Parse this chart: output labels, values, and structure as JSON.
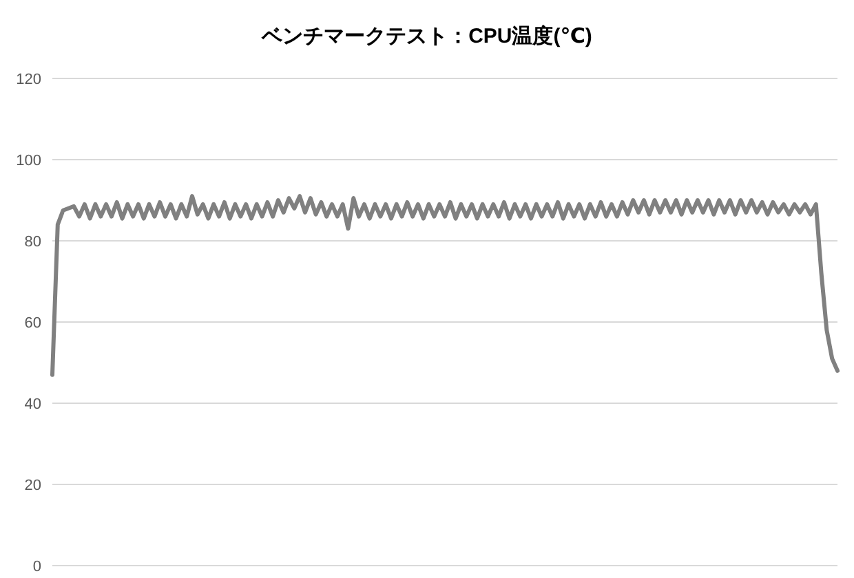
{
  "chart_data": {
    "type": "line",
    "title": "ベンチマークテスト：CPU温度(℃)",
    "categories": [
      null,
      null,
      null,
      null,
      null,
      null,
      null,
      null,
      null,
      null,
      null,
      null,
      null,
      null,
      null,
      null,
      null,
      null,
      null,
      null,
      null,
      null,
      null,
      null,
      null,
      null,
      null,
      null,
      null,
      null,
      null,
      null,
      null,
      null,
      null,
      null,
      null,
      null,
      null,
      null,
      null,
      null,
      null,
      null,
      null,
      null,
      null,
      null,
      null,
      null,
      null,
      null,
      null,
      null,
      null,
      null,
      null,
      null,
      null,
      null,
      null,
      null,
      null,
      null,
      null,
      null,
      null,
      null,
      null,
      null,
      null,
      null,
      null,
      null,
      null,
      null,
      null,
      null,
      null,
      null,
      null,
      null,
      null,
      null,
      null,
      null,
      null,
      null,
      null,
      null,
      null,
      null,
      null,
      null,
      null,
      null,
      null,
      null,
      null,
      null,
      null,
      null,
      null,
      null,
      null,
      null,
      null,
      null,
      null,
      null,
      null,
      null,
      null,
      null,
      null,
      null,
      null,
      null,
      null,
      null,
      null,
      null,
      null,
      null,
      null,
      null,
      null,
      null,
      null,
      null,
      null,
      null,
      null,
      null,
      null,
      null,
      null,
      null,
      null,
      null,
      null,
      null,
      null,
      null,
      null,
      null,
      null
    ],
    "series": [
      {
        "color": "#808080",
        "values": [
          47,
          84,
          87.5,
          88,
          88.5,
          86,
          89,
          85.5,
          89,
          86,
          89,
          86,
          89.5,
          85.5,
          89,
          86,
          89,
          85.5,
          89,
          86,
          89.5,
          86,
          89,
          85.5,
          89,
          86,
          91,
          86.5,
          89,
          85.5,
          89,
          86,
          89.5,
          85.5,
          89,
          86,
          89,
          85.5,
          89,
          86,
          89.5,
          86,
          90,
          87,
          90.5,
          88,
          91,
          87,
          90.5,
          86.5,
          89.5,
          86,
          89,
          86,
          89,
          83,
          90.5,
          86,
          89,
          85.5,
          89,
          86,
          89,
          85.5,
          89,
          86,
          89.5,
          86,
          89,
          85.5,
          89,
          86,
          89,
          86,
          89.5,
          85.5,
          89,
          86,
          89,
          85.5,
          89,
          86,
          89,
          86,
          89.5,
          85.5,
          89,
          86,
          89,
          85.5,
          89,
          86,
          89,
          86,
          89.5,
          85.5,
          89,
          86,
          89,
          85.5,
          89,
          86,
          89.5,
          86,
          89,
          86,
          89.5,
          86.5,
          90,
          87,
          90,
          86.5,
          90,
          87,
          90,
          87,
          90,
          86.5,
          90,
          87,
          90,
          87,
          90,
          86.5,
          90,
          87,
          90,
          86.5,
          90,
          87,
          90,
          87,
          89.5,
          86.5,
          89.5,
          87,
          89,
          86.5,
          89,
          87,
          89,
          86.5,
          89,
          72,
          58,
          51,
          48
        ]
      }
    ],
    "ylim": [
      0,
      120
    ],
    "yticks": [
      0,
      20,
      40,
      60,
      80,
      100,
      120
    ],
    "grid": "y",
    "marker": "none",
    "line_style": "solid"
  }
}
